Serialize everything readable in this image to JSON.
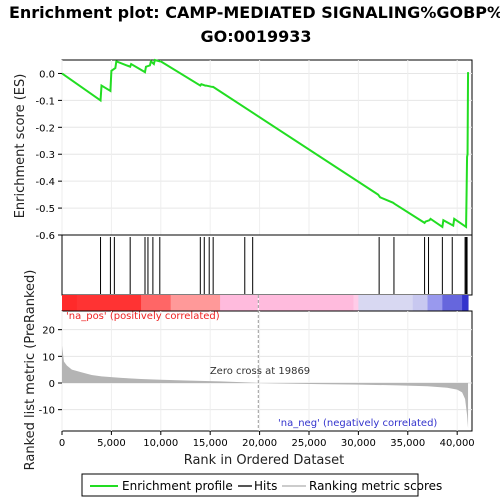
{
  "title": {
    "line1": "Enrichment plot: CAMP-MEDIATED SIGNALING%GOBP%",
    "line2": "GO:0019933"
  },
  "colors": {
    "es_line": "#22dd22",
    "hits": "#000000",
    "metric_fill": "#b4b4b4",
    "pos_label": "#ee2222",
    "neg_label": "#3333cc"
  },
  "labels": {
    "na_pos": "'na_pos' (positively correlated)",
    "na_neg": "'na_neg' (negatively correlated)",
    "zero_cross": "Zero cross at 19869"
  },
  "legend": {
    "items": [
      {
        "label": "Enrichment profile",
        "color": "#22dd22"
      },
      {
        "label": "Hits",
        "color": "#555555"
      },
      {
        "label": "Ranking metric scores",
        "color": "#cccccc"
      }
    ]
  },
  "chart_data": {
    "type": "line",
    "xlabel": "Rank in Ordered Dataset",
    "xlim": [
      0,
      41500
    ],
    "xticks": [
      0,
      5000,
      10000,
      15000,
      20000,
      25000,
      30000,
      35000,
      40000
    ],
    "xtick_labels": [
      "0",
      "5,000",
      "10,000",
      "15,000",
      "20,000",
      "25,000",
      "30,000",
      "35,000",
      "40,000"
    ],
    "zero_cross": 19869,
    "es_panel": {
      "ylabel": "Enrichment score (ES)",
      "ylim": [
        -0.6,
        0.05
      ],
      "yticks": [
        0.0,
        -0.1,
        -0.2,
        -0.3,
        -0.4,
        -0.5,
        -0.6
      ],
      "ytick_labels": [
        "0.0",
        "-0.1",
        "-0.2",
        "-0.3",
        "-0.4",
        "-0.5",
        "-0.6"
      ],
      "x": [
        0,
        3900,
        4000,
        4900,
        5000,
        5400,
        5500,
        6900,
        7000,
        8400,
        8500,
        8900,
        9000,
        9300,
        9400,
        9900,
        10000,
        14000,
        14100,
        14500,
        14600,
        15200,
        15300,
        32000,
        32200,
        33500,
        33700,
        36700,
        36800,
        37200,
        37300,
        38500,
        38600,
        39600,
        39700,
        40900,
        40950,
        41000,
        41050,
        41100
      ],
      "y": [
        0.0,
        -0.1,
        -0.045,
        -0.065,
        0.01,
        0.02,
        0.045,
        0.025,
        0.035,
        0.005,
        0.025,
        0.03,
        0.045,
        0.035,
        0.05,
        0.045,
        0.045,
        -0.045,
        -0.04,
        -0.045,
        -0.045,
        -0.05,
        -0.05,
        -0.45,
        -0.46,
        -0.48,
        -0.485,
        -0.555,
        -0.55,
        -0.545,
        -0.54,
        -0.57,
        -0.545,
        -0.565,
        -0.54,
        -0.57,
        -0.45,
        -0.31,
        -0.3,
        0.005
      ]
    },
    "hits": [
      3900,
      4900,
      5300,
      6900,
      8400,
      8700,
      9200,
      9900,
      14000,
      14400,
      14900,
      15300,
      18500,
      19300,
      32100,
      33600,
      36700,
      37100,
      38500,
      39500,
      40800,
      40900,
      40950,
      41000
    ],
    "metric_panel": {
      "ylabel": "Ranked list metric (PreRanked)",
      "ylim": [
        -18,
        27
      ],
      "yticks": [
        20,
        10,
        0,
        -10
      ],
      "ytick_labels": [
        "20",
        "10",
        "0",
        "-10"
      ],
      "x": [
        0,
        200,
        500,
        1000,
        2000,
        3000,
        4000,
        6000,
        8000,
        10000,
        13000,
        16000,
        19000,
        19869,
        22000,
        26000,
        30000,
        34000,
        37000,
        39000,
        40000,
        40500,
        40800,
        41000,
        41100
      ],
      "y": [
        14,
        8,
        6.5,
        5,
        4,
        3,
        2.5,
        1.9,
        1.5,
        1.2,
        0.9,
        0.6,
        0.2,
        0.0,
        -0.2,
        -0.4,
        -0.6,
        -0.9,
        -1.2,
        -1.8,
        -2.5,
        -3.5,
        -6,
        -12,
        -17
      ]
    }
  }
}
